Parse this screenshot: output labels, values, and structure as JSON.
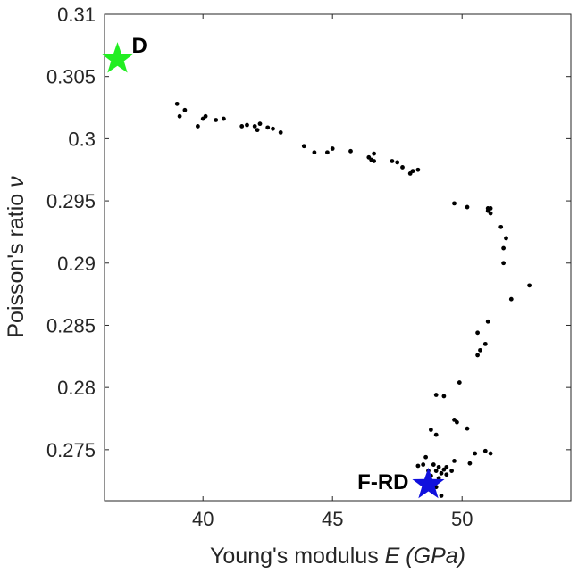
{
  "chart_data": {
    "type": "scatter",
    "xlabel": "Young's modulus E (GPa)",
    "xlabel_parts": {
      "prefix": "Young's modulus ",
      "italic": "E (GPa)"
    },
    "ylabel": "Poisson's ratio ν",
    "ylabel_parts": {
      "prefix": "Poisson's ratio ",
      "italic": "ν"
    },
    "xlim": [
      36.2,
      54.2
    ],
    "ylim": [
      0.2709,
      0.31
    ],
    "xticks": [
      40,
      45,
      50
    ],
    "xtick_labels": [
      "40",
      "45",
      "50"
    ],
    "yticks": [
      0.275,
      0.28,
      0.285,
      0.29,
      0.295,
      0.3,
      0.305,
      0.31
    ],
    "ytick_labels": [
      "0.275",
      "0.28",
      "0.285",
      "0.29",
      "0.295",
      "0.3",
      "0.305",
      "0.31"
    ],
    "grid": false,
    "box": true,
    "series": [
      {
        "marker": "dot",
        "color": "#000000",
        "points": [
          [
            39.0,
            0.3028
          ],
          [
            39.1,
            0.3018
          ],
          [
            39.3,
            0.3023
          ],
          [
            39.8,
            0.301
          ],
          [
            40.0,
            0.3016
          ],
          [
            40.1,
            0.3018
          ],
          [
            40.5,
            0.3015
          ],
          [
            40.8,
            0.3016
          ],
          [
            41.5,
            0.301
          ],
          [
            41.7,
            0.3011
          ],
          [
            42.0,
            0.301
          ],
          [
            42.1,
            0.3007
          ],
          [
            42.2,
            0.3012
          ],
          [
            42.5,
            0.3009
          ],
          [
            42.7,
            0.3008
          ],
          [
            43.0,
            0.3005
          ],
          [
            43.9,
            0.2994
          ],
          [
            44.3,
            0.2989
          ],
          [
            44.8,
            0.2989
          ],
          [
            45.0,
            0.2992
          ],
          [
            45.7,
            0.299
          ],
          [
            46.4,
            0.2985
          ],
          [
            46.5,
            0.2983
          ],
          [
            46.6,
            0.2982
          ],
          [
            46.6,
            0.2988
          ],
          [
            47.3,
            0.2982
          ],
          [
            47.5,
            0.2981
          ],
          [
            47.7,
            0.2977
          ],
          [
            48.0,
            0.2972
          ],
          [
            48.1,
            0.2974
          ],
          [
            48.3,
            0.2975
          ],
          [
            49.7,
            0.2948
          ],
          [
            50.2,
            0.2945
          ],
          [
            51.0,
            0.2942
          ],
          [
            51.0,
            0.2944
          ],
          [
            51.1,
            0.2944
          ],
          [
            51.1,
            0.294
          ],
          [
            51.5,
            0.2929
          ],
          [
            51.7,
            0.292
          ],
          [
            51.6,
            0.2912
          ],
          [
            51.6,
            0.29
          ],
          [
            51.9,
            0.2871
          ],
          [
            52.6,
            0.2882
          ],
          [
            51.0,
            0.2853
          ],
          [
            50.6,
            0.2844
          ],
          [
            50.9,
            0.2835
          ],
          [
            50.7,
            0.283
          ],
          [
            50.6,
            0.2826
          ],
          [
            49.9,
            0.2804
          ],
          [
            49.0,
            0.2794
          ],
          [
            49.3,
            0.2793
          ],
          [
            49.7,
            0.2774
          ],
          [
            49.8,
            0.2772
          ],
          [
            48.8,
            0.2766
          ],
          [
            49.0,
            0.2762
          ],
          [
            50.2,
            0.2767
          ],
          [
            50.5,
            0.2747
          ],
          [
            50.9,
            0.2749
          ],
          [
            51.1,
            0.2747
          ],
          [
            49.7,
            0.2741
          ],
          [
            50.3,
            0.2739
          ],
          [
            48.6,
            0.2744
          ],
          [
            48.5,
            0.2738
          ],
          [
            48.9,
            0.2738
          ],
          [
            49.1,
            0.2736
          ],
          [
            49.4,
            0.2736
          ],
          [
            48.7,
            0.2733
          ],
          [
            49.0,
            0.2733
          ],
          [
            49.2,
            0.2731
          ],
          [
            49.3,
            0.2734
          ],
          [
            49.6,
            0.2733
          ],
          [
            48.8,
            0.2729
          ],
          [
            49.1,
            0.2727
          ],
          [
            49.4,
            0.273
          ],
          [
            49.0,
            0.272
          ],
          [
            49.2,
            0.2713
          ],
          [
            48.3,
            0.2737
          ]
        ]
      }
    ],
    "annotations": [
      {
        "label": "D",
        "x": 36.7,
        "y": 0.3064,
        "marker": "star",
        "color": "#22ee22",
        "label_side": "right"
      },
      {
        "label": "F-RD",
        "x": 48.7,
        "y": 0.2722,
        "marker": "star",
        "color": "#1010dd",
        "label_side": "left"
      }
    ]
  }
}
